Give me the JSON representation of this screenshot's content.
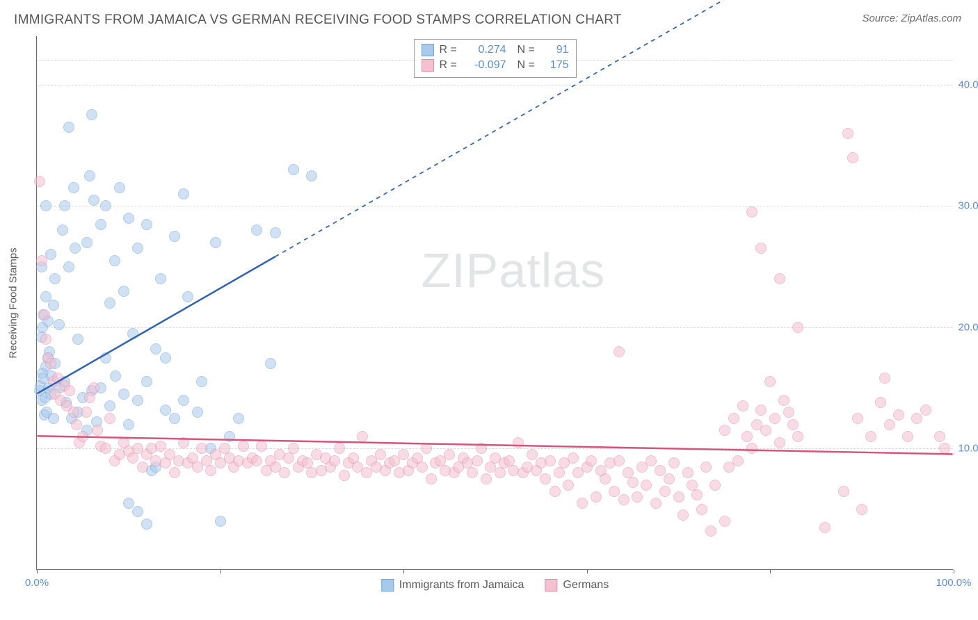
{
  "title": "IMMIGRANTS FROM JAMAICA VS GERMAN RECEIVING FOOD STAMPS CORRELATION CHART",
  "source": "Source: ZipAtlas.com",
  "watermark_zip": "ZIP",
  "watermark_atlas": "atlas",
  "chart": {
    "type": "scatter",
    "background_color": "#ffffff",
    "grid_color": "#d8d8d8",
    "axis_color": "#6a6a6e",
    "tick_label_color": "#5b8dd6",
    "axis_title_color": "#59595c",
    "xlim": [
      0,
      100
    ],
    "ylim": [
      0,
      44
    ],
    "xticks": [
      0,
      20,
      40,
      60,
      80,
      100
    ],
    "xtick_labels": [
      "0.0%",
      "",
      "",
      "",
      "",
      "100.0%"
    ],
    "yticks": [
      10,
      20,
      30,
      40
    ],
    "ytick_labels": [
      "10.0%",
      "20.0%",
      "30.0%",
      "40.0%"
    ],
    "y_axis_title": "Receiving Food Stamps",
    "marker_radius": 8,
    "marker_opacity": 0.55,
    "series": [
      {
        "name": "Immigrants from Jamaica",
        "color": "#6fa3de",
        "fill": "#a9c9ea",
        "r_value": "0.274",
        "n_value": "91",
        "regression": {
          "x1": 0,
          "y1": 14.5,
          "x2": 26,
          "y2": 25.8,
          "extend_x2": 75,
          "extend_y2": 47,
          "stroke": "#2f62b5",
          "width": 2.5,
          "dash_extrapolate": "6,6"
        },
        "points": [
          [
            0.3,
            14.8
          ],
          [
            0.4,
            15.2
          ],
          [
            0.5,
            14.0
          ],
          [
            0.6,
            16.2
          ],
          [
            0.7,
            15.8
          ],
          [
            0.9,
            14.2
          ],
          [
            1.0,
            16.8
          ],
          [
            0.8,
            12.8
          ],
          [
            1.1,
            13.0
          ],
          [
            1.2,
            17.5
          ],
          [
            1.3,
            15.0
          ],
          [
            1.5,
            14.5
          ],
          [
            1.6,
            16.0
          ],
          [
            1.8,
            12.5
          ],
          [
            1.4,
            18.0
          ],
          [
            0.5,
            19.2
          ],
          [
            0.6,
            20.0
          ],
          [
            0.7,
            21.0
          ],
          [
            1.2,
            20.5
          ],
          [
            1.0,
            22.5
          ],
          [
            1.8,
            21.8
          ],
          [
            2.4,
            20.2
          ],
          [
            2.0,
            17.0
          ],
          [
            2.5,
            15.0
          ],
          [
            3.0,
            15.5
          ],
          [
            3.2,
            13.8
          ],
          [
            3.8,
            12.5
          ],
          [
            4.5,
            13.0
          ],
          [
            5.0,
            14.2
          ],
          [
            5.5,
            11.5
          ],
          [
            6.0,
            14.8
          ],
          [
            6.5,
            12.2
          ],
          [
            7.0,
            15.0
          ],
          [
            7.5,
            17.5
          ],
          [
            8.0,
            13.5
          ],
          [
            8.6,
            16.0
          ],
          [
            9.5,
            14.5
          ],
          [
            10.0,
            12.0
          ],
          [
            10.5,
            19.5
          ],
          [
            11.0,
            14.0
          ],
          [
            12.0,
            15.5
          ],
          [
            12.5,
            8.2
          ],
          [
            13.0,
            18.2
          ],
          [
            14.0,
            13.2
          ],
          [
            15.0,
            12.5
          ],
          [
            16.0,
            14.0
          ],
          [
            17.5,
            13.0
          ],
          [
            19.0,
            10.0
          ],
          [
            20.0,
            4.0
          ],
          [
            21.0,
            11.0
          ],
          [
            2.0,
            24.0
          ],
          [
            3.5,
            25.0
          ],
          [
            4.2,
            26.5
          ],
          [
            1.5,
            26.0
          ],
          [
            2.8,
            28.0
          ],
          [
            5.5,
            27.0
          ],
          [
            7.0,
            28.5
          ],
          [
            6.2,
            30.5
          ],
          [
            8.5,
            25.5
          ],
          [
            9.5,
            23.0
          ],
          [
            11.0,
            26.5
          ],
          [
            12.0,
            28.5
          ],
          [
            13.5,
            24.0
          ],
          [
            15.0,
            27.5
          ],
          [
            16.5,
            22.5
          ],
          [
            4.0,
            31.5
          ],
          [
            5.8,
            32.5
          ],
          [
            7.5,
            30.0
          ],
          [
            10.0,
            29.0
          ],
          [
            14.0,
            17.5
          ],
          [
            3.5,
            36.5
          ],
          [
            6.0,
            37.5
          ],
          [
            8.0,
            22.0
          ],
          [
            3.0,
            30.0
          ],
          [
            10.0,
            5.5
          ],
          [
            11.0,
            4.8
          ],
          [
            12.0,
            3.8
          ],
          [
            22.0,
            12.5
          ],
          [
            24.0,
            28.0
          ],
          [
            25.5,
            17.0
          ],
          [
            26.0,
            27.8
          ],
          [
            28.0,
            33.0
          ],
          [
            30.0,
            32.5
          ],
          [
            19.5,
            27.0
          ],
          [
            16.0,
            31.0
          ],
          [
            9.0,
            31.5
          ],
          [
            0.5,
            25.0
          ],
          [
            1.0,
            30.0
          ],
          [
            4.5,
            19.0
          ],
          [
            18.0,
            15.5
          ],
          [
            13.0,
            8.5
          ]
        ]
      },
      {
        "name": "Germans",
        "color": "#e58da8",
        "fill": "#f3c1d0",
        "r_value": "-0.097",
        "n_value": "175",
        "regression": {
          "x1": 0,
          "y1": 11.0,
          "x2": 100,
          "y2": 9.5,
          "stroke": "#d8537a",
          "width": 2.5
        },
        "points": [
          [
            0.3,
            32.0
          ],
          [
            0.5,
            25.5
          ],
          [
            0.8,
            21.0
          ],
          [
            1.0,
            19.0
          ],
          [
            1.2,
            17.5
          ],
          [
            1.5,
            17.0
          ],
          [
            1.8,
            15.5
          ],
          [
            2.0,
            14.5
          ],
          [
            2.3,
            15.8
          ],
          [
            2.6,
            14.0
          ],
          [
            3.0,
            15.2
          ],
          [
            3.3,
            13.5
          ],
          [
            3.6,
            14.8
          ],
          [
            4.0,
            13.0
          ],
          [
            4.3,
            12.0
          ],
          [
            4.6,
            10.5
          ],
          [
            5.0,
            11.0
          ],
          [
            5.4,
            13.0
          ],
          [
            5.8,
            14.2
          ],
          [
            6.2,
            15.0
          ],
          [
            6.6,
            11.5
          ],
          [
            7.0,
            10.2
          ],
          [
            7.5,
            10.0
          ],
          [
            8.0,
            12.5
          ],
          [
            8.5,
            9.0
          ],
          [
            9.0,
            9.5
          ],
          [
            9.5,
            10.5
          ],
          [
            10.0,
            9.8
          ],
          [
            10.5,
            9.2
          ],
          [
            11.0,
            10.0
          ],
          [
            11.5,
            8.5
          ],
          [
            12.0,
            9.5
          ],
          [
            12.5,
            10.0
          ],
          [
            13.0,
            9.0
          ],
          [
            13.5,
            10.2
          ],
          [
            14.0,
            8.8
          ],
          [
            14.5,
            9.5
          ],
          [
            15.0,
            8.0
          ],
          [
            15.5,
            9.0
          ],
          [
            16.0,
            10.5
          ],
          [
            16.5,
            8.8
          ],
          [
            17.0,
            9.2
          ],
          [
            17.5,
            8.5
          ],
          [
            18.0,
            10.0
          ],
          [
            18.5,
            9.0
          ],
          [
            19.0,
            8.2
          ],
          [
            19.5,
            9.5
          ],
          [
            20.0,
            8.8
          ],
          [
            20.5,
            10.0
          ],
          [
            21.0,
            9.2
          ],
          [
            21.5,
            8.5
          ],
          [
            22.0,
            9.0
          ],
          [
            22.5,
            10.2
          ],
          [
            23.0,
            8.8
          ],
          [
            23.5,
            9.2
          ],
          [
            24.0,
            9.0
          ],
          [
            24.5,
            10.2
          ],
          [
            25.0,
            8.2
          ],
          [
            25.5,
            9.0
          ],
          [
            26.0,
            8.5
          ],
          [
            26.5,
            9.5
          ],
          [
            27.0,
            8.0
          ],
          [
            27.5,
            9.2
          ],
          [
            28.0,
            10.0
          ],
          [
            28.5,
            8.5
          ],
          [
            29.0,
            9.0
          ],
          [
            29.5,
            8.8
          ],
          [
            30.0,
            8.0
          ],
          [
            30.5,
            9.5
          ],
          [
            31.0,
            8.2
          ],
          [
            31.5,
            9.2
          ],
          [
            32.0,
            8.5
          ],
          [
            32.5,
            9.0
          ],
          [
            33.0,
            10.0
          ],
          [
            33.5,
            7.8
          ],
          [
            34.0,
            8.8
          ],
          [
            34.5,
            9.2
          ],
          [
            35.0,
            8.5
          ],
          [
            35.5,
            11.0
          ],
          [
            36.0,
            8.0
          ],
          [
            36.5,
            9.0
          ],
          [
            37.0,
            8.5
          ],
          [
            37.5,
            9.5
          ],
          [
            38.0,
            8.2
          ],
          [
            38.5,
            8.8
          ],
          [
            39.0,
            9.0
          ],
          [
            39.5,
            8.0
          ],
          [
            40.0,
            9.5
          ],
          [
            40.5,
            8.2
          ],
          [
            41.0,
            8.8
          ],
          [
            41.5,
            9.2
          ],
          [
            42.0,
            8.5
          ],
          [
            42.5,
            10.0
          ],
          [
            43.0,
            7.5
          ],
          [
            43.5,
            8.8
          ],
          [
            44.0,
            9.0
          ],
          [
            44.5,
            8.2
          ],
          [
            45.0,
            9.5
          ],
          [
            45.5,
            8.0
          ],
          [
            46.0,
            8.5
          ],
          [
            46.5,
            9.2
          ],
          [
            47.0,
            8.8
          ],
          [
            47.5,
            8.0
          ],
          [
            48.0,
            9.0
          ],
          [
            48.5,
            10.0
          ],
          [
            49.0,
            7.5
          ],
          [
            49.5,
            8.5
          ],
          [
            50.0,
            9.2
          ],
          [
            50.5,
            8.0
          ],
          [
            51.0,
            8.8
          ],
          [
            51.5,
            9.0
          ],
          [
            52.0,
            8.2
          ],
          [
            52.5,
            10.5
          ],
          [
            53.0,
            8.0
          ],
          [
            53.5,
            8.5
          ],
          [
            54.0,
            9.5
          ],
          [
            54.5,
            8.2
          ],
          [
            55.0,
            8.8
          ],
          [
            55.5,
            7.5
          ],
          [
            56.0,
            9.0
          ],
          [
            56.5,
            6.5
          ],
          [
            57.0,
            8.0
          ],
          [
            57.5,
            8.8
          ],
          [
            58.0,
            7.0
          ],
          [
            58.5,
            9.2
          ],
          [
            59.0,
            8.0
          ],
          [
            59.5,
            5.5
          ],
          [
            60.0,
            8.5
          ],
          [
            60.5,
            9.0
          ],
          [
            61.0,
            6.0
          ],
          [
            61.5,
            8.2
          ],
          [
            62.0,
            7.5
          ],
          [
            62.5,
            8.8
          ],
          [
            63.0,
            6.5
          ],
          [
            63.5,
            9.0
          ],
          [
            64.0,
            5.8
          ],
          [
            64.5,
            8.0
          ],
          [
            65.0,
            7.2
          ],
          [
            65.5,
            6.0
          ],
          [
            66.0,
            8.5
          ],
          [
            66.5,
            7.0
          ],
          [
            67.0,
            9.0
          ],
          [
            67.5,
            5.5
          ],
          [
            68.0,
            8.2
          ],
          [
            68.5,
            6.5
          ],
          [
            69.0,
            7.5
          ],
          [
            69.5,
            8.8
          ],
          [
            70.0,
            6.0
          ],
          [
            70.5,
            4.5
          ],
          [
            71.0,
            8.0
          ],
          [
            71.5,
            7.0
          ],
          [
            72.0,
            6.2
          ],
          [
            72.5,
            5.0
          ],
          [
            73.0,
            8.5
          ],
          [
            73.5,
            3.2
          ],
          [
            74.0,
            7.0
          ],
          [
            75.0,
            11.5
          ],
          [
            75.5,
            8.5
          ],
          [
            76.0,
            12.5
          ],
          [
            76.5,
            9.0
          ],
          [
            77.0,
            13.5
          ],
          [
            77.5,
            11.0
          ],
          [
            78.0,
            10.0
          ],
          [
            78.5,
            12.0
          ],
          [
            79.0,
            13.2
          ],
          [
            79.5,
            11.5
          ],
          [
            80.0,
            15.5
          ],
          [
            80.5,
            12.5
          ],
          [
            81.0,
            10.5
          ],
          [
            81.5,
            14.0
          ],
          [
            82.0,
            13.0
          ],
          [
            82.5,
            12.0
          ],
          [
            83.0,
            11.0
          ],
          [
            63.5,
            18.0
          ],
          [
            78.0,
            29.5
          ],
          [
            79.0,
            26.5
          ],
          [
            81.0,
            24.0
          ],
          [
            83.0,
            20.0
          ],
          [
            88.5,
            36.0
          ],
          [
            89.0,
            34.0
          ],
          [
            89.5,
            12.5
          ],
          [
            91.0,
            11.0
          ],
          [
            92.0,
            13.8
          ],
          [
            93.0,
            12.0
          ],
          [
            92.5,
            15.8
          ],
          [
            94.0,
            12.8
          ],
          [
            95.0,
            11.0
          ],
          [
            96.0,
            12.5
          ],
          [
            97.0,
            13.2
          ],
          [
            98.5,
            11.0
          ],
          [
            99.0,
            10.0
          ],
          [
            75.0,
            4.0
          ],
          [
            86.0,
            3.5
          ],
          [
            90.0,
            5.0
          ],
          [
            88.0,
            6.5
          ]
        ]
      }
    ],
    "legend_bottom": [
      {
        "swatch_fill": "#a9c9ea",
        "swatch_border": "#6fa3de",
        "label": "Immigrants from Jamaica"
      },
      {
        "swatch_fill": "#f3c1d0",
        "swatch_border": "#e58da8",
        "label": "Germans"
      }
    ]
  }
}
